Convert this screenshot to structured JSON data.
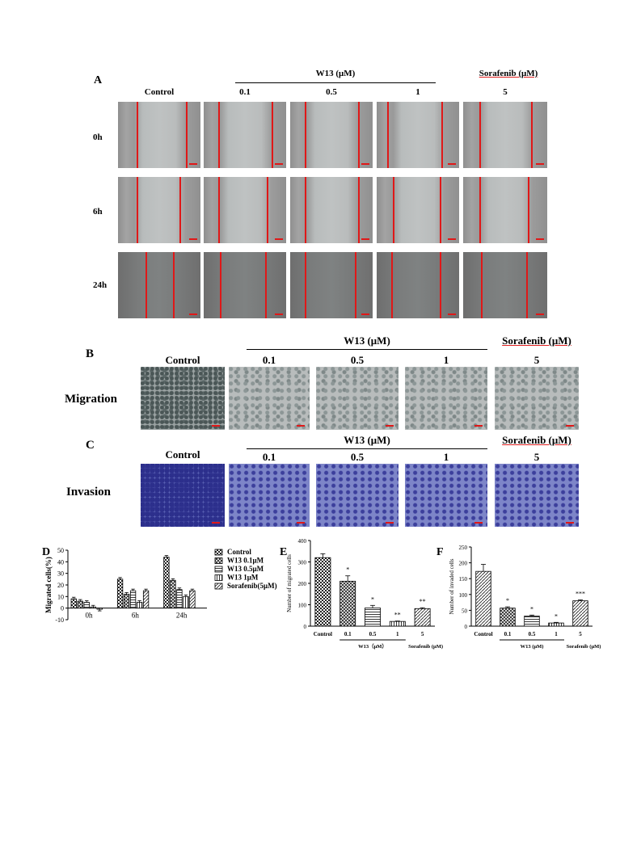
{
  "panelA": {
    "letter": "A",
    "control": "Control",
    "group_w13": "W13 (μM)",
    "group_sora": "Sorafenib (μM)",
    "conc": [
      "0.1",
      "0.5",
      "1",
      "5"
    ],
    "rows": [
      "0h",
      "6h",
      "24h"
    ]
  },
  "panelB": {
    "letter": "B",
    "control": "Control",
    "group_w13": "W13 (μM)",
    "group_sora": "Sorafenib (μM)",
    "conc": [
      "0.1",
      "0.5",
      "1",
      "5"
    ],
    "row": "Migration"
  },
  "panelC": {
    "letter": "C",
    "control": "Control",
    "group_w13": "W13 (μM)",
    "group_sora": "Sorafenib (μM)",
    "conc": [
      "0.1",
      "0.5",
      "1",
      "5"
    ],
    "row": "Invasion"
  },
  "chart_data": [
    {
      "panel": "D",
      "type": "bar",
      "ylabel": "Migrated cells(%)",
      "ylim": [
        -10,
        50
      ],
      "yticks": [
        "50",
        "40",
        "30",
        "20",
        "10",
        "0",
        "-10"
      ],
      "categories": [
        "0h",
        "6h",
        "24h"
      ],
      "series": [
        {
          "name": "Control",
          "values": [
            8,
            25,
            44
          ]
        },
        {
          "name": "W13 0.1μM",
          "values": [
            6,
            12,
            24
          ]
        },
        {
          "name": "W13 0.5μM",
          "values": [
            5,
            15,
            16
          ]
        },
        {
          "name": "W13 1μM",
          "values": [
            1,
            5,
            10
          ]
        },
        {
          "name": "Sorafenib(5μM)",
          "values": [
            -1,
            15,
            15
          ]
        }
      ],
      "legend": "right"
    },
    {
      "panel": "E",
      "type": "bar",
      "ylabel": "Number of migrated cells",
      "ylim": [
        0,
        400
      ],
      "yticks": [
        "400",
        "300",
        "200",
        "100",
        "0"
      ],
      "categories": [
        "Control",
        "0.1",
        "0.5",
        "1",
        "5"
      ],
      "values": [
        320,
        210,
        85,
        22,
        82
      ],
      "significance": [
        "",
        "*",
        "*",
        "**",
        "**"
      ],
      "group_w13": "W13（μM）",
      "group_sora": "Sorafenib (μM)"
    },
    {
      "panel": "F",
      "type": "bar",
      "ylabel": "Number of invaded cells",
      "ylim": [
        0,
        250
      ],
      "yticks": [
        "250",
        "200",
        "150",
        "100",
        "50",
        "0"
      ],
      "categories": [
        "Control",
        "0.1",
        "0.5",
        "1",
        "5"
      ],
      "values": [
        173,
        57,
        32,
        10,
        80
      ],
      "significance": [
        "",
        "*",
        "*",
        "*",
        "***"
      ],
      "group_w13": "W13 (μM)",
      "group_sora": "Sorafenib (μM)"
    }
  ],
  "panel_letters": {
    "D": "D",
    "E": "E",
    "F": "F"
  }
}
